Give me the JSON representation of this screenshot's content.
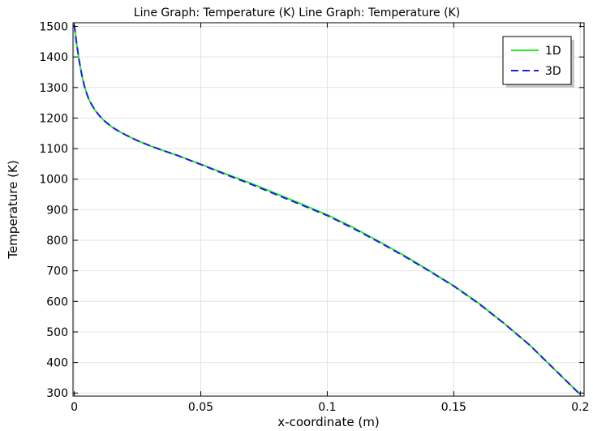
{
  "chart_data": {
    "type": "line",
    "title": "Line Graph: Temperature (K)  Line Graph: Temperature (K)",
    "xlabel": "x-coordinate (m)",
    "ylabel": "Temperature (K)",
    "xlim": [
      -0.0005,
      0.2015
    ],
    "ylim": [
      290,
      1512
    ],
    "xticks": [
      0,
      0.05,
      0.1,
      0.15,
      0.2
    ],
    "xtick_labels": [
      "0",
      "0.05",
      "0.1",
      "0.15",
      "0.2"
    ],
    "yticks": [
      300,
      400,
      500,
      600,
      700,
      800,
      900,
      1000,
      1100,
      1200,
      1300,
      1400,
      1500
    ],
    "ytick_labels": [
      "300",
      "400",
      "500",
      "600",
      "700",
      "800",
      "900",
      "1000",
      "1100",
      "1200",
      "1300",
      "1400",
      "1500"
    ],
    "grid": true,
    "legend_position": "top-right",
    "series": [
      {
        "name": "1D",
        "color": "#22ee22",
        "style": "solid",
        "x": [
          0,
          0.001,
          0.002,
          0.003,
          0.004,
          0.005,
          0.006,
          0.008,
          0.01,
          0.012,
          0.015,
          0.018,
          0.02,
          0.025,
          0.03,
          0.035,
          0.04,
          0.05,
          0.06,
          0.07,
          0.08,
          0.09,
          0.1,
          0.11,
          0.12,
          0.13,
          0.14,
          0.15,
          0.16,
          0.17,
          0.18,
          0.19,
          0.2
        ],
        "y": [
          1505,
          1440,
          1385,
          1340,
          1305,
          1278,
          1257,
          1228,
          1207,
          1190,
          1170,
          1155,
          1146,
          1126,
          1109,
          1094,
          1080,
          1049,
          1017,
          986,
          952,
          918,
          883,
          843,
          798,
          752,
          702,
          651,
          593,
          527,
          457,
          376,
          295
        ]
      },
      {
        "name": "3D",
        "color": "#1e1ee6",
        "style": "dashed",
        "x": [
          0,
          0.001,
          0.002,
          0.003,
          0.004,
          0.005,
          0.006,
          0.008,
          0.01,
          0.012,
          0.015,
          0.018,
          0.02,
          0.025,
          0.03,
          0.035,
          0.04,
          0.05,
          0.06,
          0.07,
          0.08,
          0.09,
          0.1,
          0.11,
          0.12,
          0.13,
          0.14,
          0.15,
          0.16,
          0.17,
          0.18,
          0.19,
          0.2
        ],
        "y": [
          1505,
          1440,
          1385,
          1340,
          1305,
          1278,
          1257,
          1228,
          1207,
          1190,
          1170,
          1155,
          1146,
          1126,
          1109,
          1094,
          1080,
          1048,
          1015,
          983,
          949,
          915,
          881,
          840,
          796,
          750,
          701,
          650,
          592,
          527,
          457,
          376,
          295
        ]
      }
    ]
  }
}
